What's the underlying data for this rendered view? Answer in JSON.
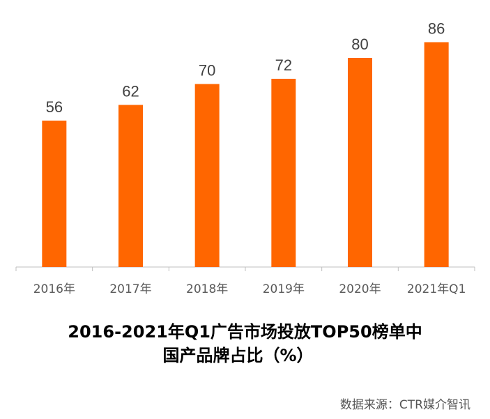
{
  "chart_data": {
    "type": "bar",
    "categories": [
      "2016年",
      "2017年",
      "2018年",
      "2019年",
      "2020年",
      "2021年Q1"
    ],
    "values": [
      56,
      62,
      70,
      72,
      80,
      86
    ],
    "ylim": [
      0,
      100
    ],
    "grid": false,
    "bar_color": "#FF6600",
    "title_line1": "2016-2021年Q1广告市场投放TOP50榜单中",
    "title_line2": "国产品牌占比（%）"
  },
  "source": "数据来源：CTR媒介智讯"
}
